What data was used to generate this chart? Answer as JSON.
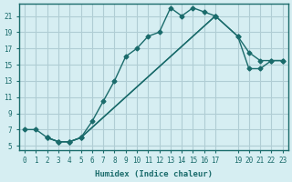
{
  "xlabel": "Humidex (Indice chaleur)",
  "ylabel": "",
  "xlim": [
    -0.5,
    23.5
  ],
  "ylim": [
    4.5,
    22.5
  ],
  "xticks": [
    0,
    1,
    2,
    3,
    4,
    5,
    6,
    7,
    8,
    9,
    10,
    11,
    12,
    13,
    14,
    15,
    16,
    17,
    19,
    20,
    21,
    22,
    23
  ],
  "xtick_labels": [
    "0",
    "1",
    "2",
    "3",
    "4",
    "5",
    "6",
    "7",
    "8",
    "9",
    "10",
    "11",
    "12",
    "13",
    "14",
    "15",
    "16",
    "17",
    "19",
    "20",
    "21",
    "22",
    "23"
  ],
  "yticks": [
    5,
    7,
    9,
    11,
    13,
    15,
    17,
    19,
    21
  ],
  "ytick_labels": [
    "5",
    "7",
    "9",
    "11",
    "13",
    "15",
    "17",
    "19",
    "21"
  ],
  "bg_color": "#d6eef2",
  "line_color": "#1a6b6b",
  "grid_color": "#b0cdd4",
  "lines": [
    {
      "x": [
        0,
        1,
        2,
        3,
        4,
        5,
        6,
        7,
        8,
        9,
        10,
        11,
        12,
        13,
        14,
        15,
        16,
        17
      ],
      "y": [
        7,
        7,
        6,
        5.5,
        5.5,
        6,
        8,
        10.5,
        13,
        16,
        17,
        18.5,
        19,
        22,
        21,
        22,
        21.5,
        21
      ]
    },
    {
      "x": [
        2,
        3,
        4,
        5,
        17,
        19,
        20,
        21,
        22,
        23
      ],
      "y": [
        6,
        5.5,
        5.5,
        6,
        21,
        18.5,
        16.5,
        15.5,
        15.5,
        15.5
      ]
    },
    {
      "x": [
        2,
        3,
        4,
        5,
        17,
        19,
        20,
        21,
        22,
        23
      ],
      "y": [
        6,
        5.5,
        5.5,
        6,
        21,
        18.5,
        14.5,
        14.5,
        15.5,
        15.5
      ]
    }
  ]
}
